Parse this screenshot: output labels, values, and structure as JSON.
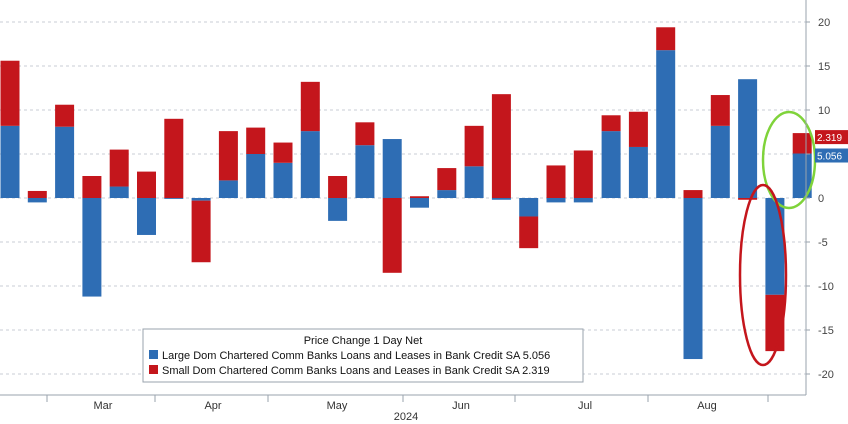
{
  "chart_data": {
    "type": "bar",
    "stacked": true,
    "legend": {
      "title": "Price Change 1 Day Net",
      "placement": "bottom-left",
      "entries": [
        "Large Dom Chartered Comm Banks Loans and Leases in Bank Credit SA 5.056",
        "Small Dom Chartered Comm Banks Loans and Leases in Bank Credit SA 2.319"
      ]
    },
    "colors": {
      "large": "#2e6db4",
      "small": "#c4161c",
      "grid": "#c9ced6",
      "highlight_green": "#7fd33a",
      "highlight_red": "#c4161c"
    },
    "y_axis": {
      "position": "right",
      "ylim": [
        -22,
        22
      ],
      "ticks": [
        20,
        15,
        10,
        5,
        0,
        -5,
        -10,
        -15,
        -20
      ],
      "tick_labels": [
        "20",
        "15",
        "10",
        "5",
        "0",
        "-5",
        "-10",
        "-15",
        "-20"
      ]
    },
    "x_axis": {
      "months": [
        "Mar",
        "Apr",
        "May",
        "Jun",
        "Jul",
        "Aug"
      ],
      "year": "2024"
    },
    "series": [
      {
        "name": "Large Dom Chartered Comm Banks Loans and Leases in Bank Credit SA",
        "color": "#2e6db4",
        "values": [
          8.2,
          -0.5,
          8.1,
          -11.2,
          1.3,
          -4.2,
          -0.1,
          -0.3,
          2.0,
          5.0,
          4.0,
          7.6,
          -2.6,
          6.0,
          6.7,
          -1.1,
          0.9,
          3.6,
          -0.2,
          -2.1,
          -0.5,
          -0.5,
          7.6,
          5.8,
          16.8,
          -18.3,
          8.2,
          13.5,
          -11.0,
          5.056
        ]
      },
      {
        "name": "Small Dom Chartered Comm Banks Loans and Leases in Bank Credit SA",
        "color": "#c4161c",
        "values": [
          7.4,
          0.8,
          2.5,
          2.5,
          4.2,
          3.0,
          9.0,
          -7.0,
          5.6,
          3.0,
          2.3,
          5.6,
          2.5,
          2.6,
          -8.5,
          0.2,
          2.5,
          4.6,
          11.8,
          -3.6,
          3.7,
          5.4,
          1.8,
          4.0,
          2.6,
          0.9,
          3.5,
          -0.2,
          -6.4,
          2.319
        ]
      }
    ],
    "last_value_labels": [
      "2.319",
      "5.056"
    ]
  }
}
